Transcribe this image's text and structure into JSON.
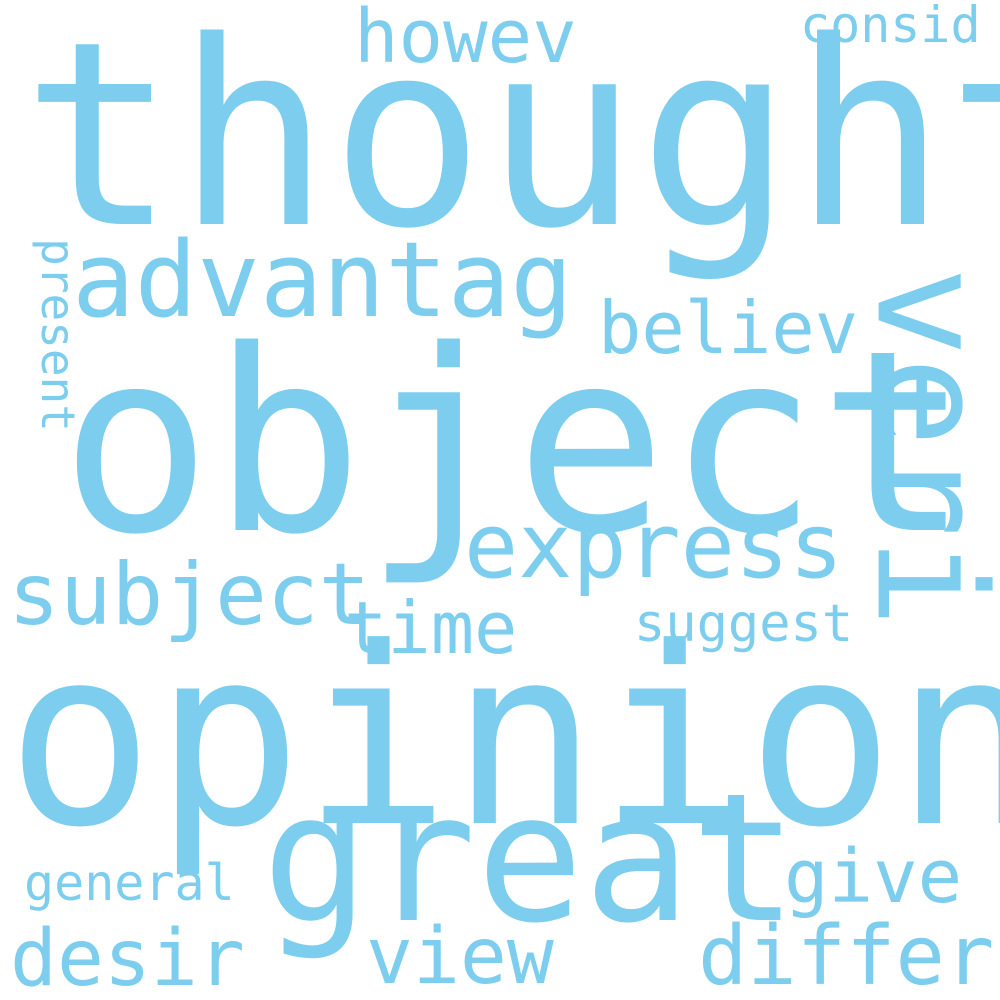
{
  "word_color": "#7ccdee",
  "words": {
    "thought": "thought",
    "opinion": "opinion",
    "object": "object",
    "great": "great",
    "veri": "veri",
    "advantag": "advantag",
    "express": "express",
    "subject": "subject",
    "howev": "howev",
    "consid": "consid",
    "believ": "believ",
    "time": "time",
    "suggest": "suggest",
    "present": "present",
    "general": "general",
    "give": "give",
    "desir": "desir",
    "view": "view",
    "differ": "differ"
  }
}
